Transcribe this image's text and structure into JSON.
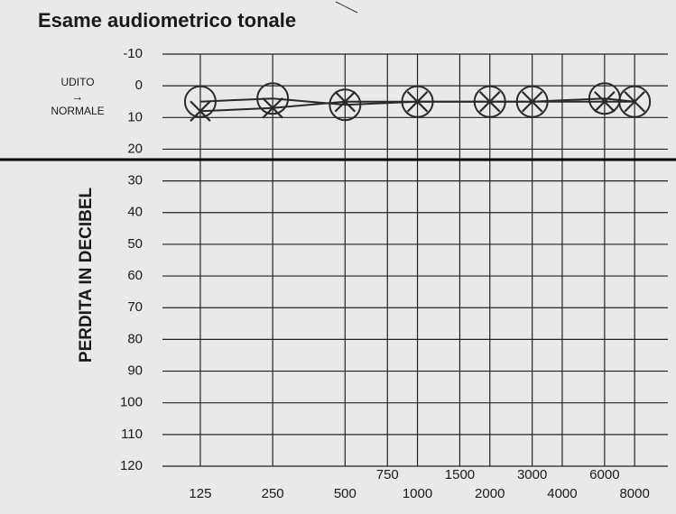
{
  "chart_data": {
    "type": "line",
    "title": "Esame audiometrico tonale",
    "y_label": "PERDITA IN DECIBEL",
    "annotation": [
      "UDITO",
      "→",
      "NORMALE"
    ],
    "x": [
      125,
      250,
      500,
      1000,
      2000,
      3000,
      6000,
      8000
    ],
    "series": [
      {
        "marker": "circle",
        "color": "#2a2a2a",
        "values": [
          5,
          4,
          6,
          5,
          5,
          5,
          4,
          5
        ]
      },
      {
        "marker": "cross",
        "color": "#2a2a2a",
        "values": [
          8,
          7,
          5,
          5,
          5,
          5,
          5,
          5
        ]
      }
    ],
    "xlog": true,
    "xlim": [
      87,
      11000
    ],
    "xticks": [
      125,
      250,
      500,
      750,
      1000,
      1500,
      2000,
      3000,
      4000,
      6000,
      8000
    ],
    "ylim": [
      -10,
      120
    ],
    "yinverted": true,
    "yticks": [
      -10,
      0,
      10,
      20,
      30,
      40,
      50,
      60,
      70,
      80,
      90,
      100,
      110,
      120
    ],
    "grid": true
  }
}
